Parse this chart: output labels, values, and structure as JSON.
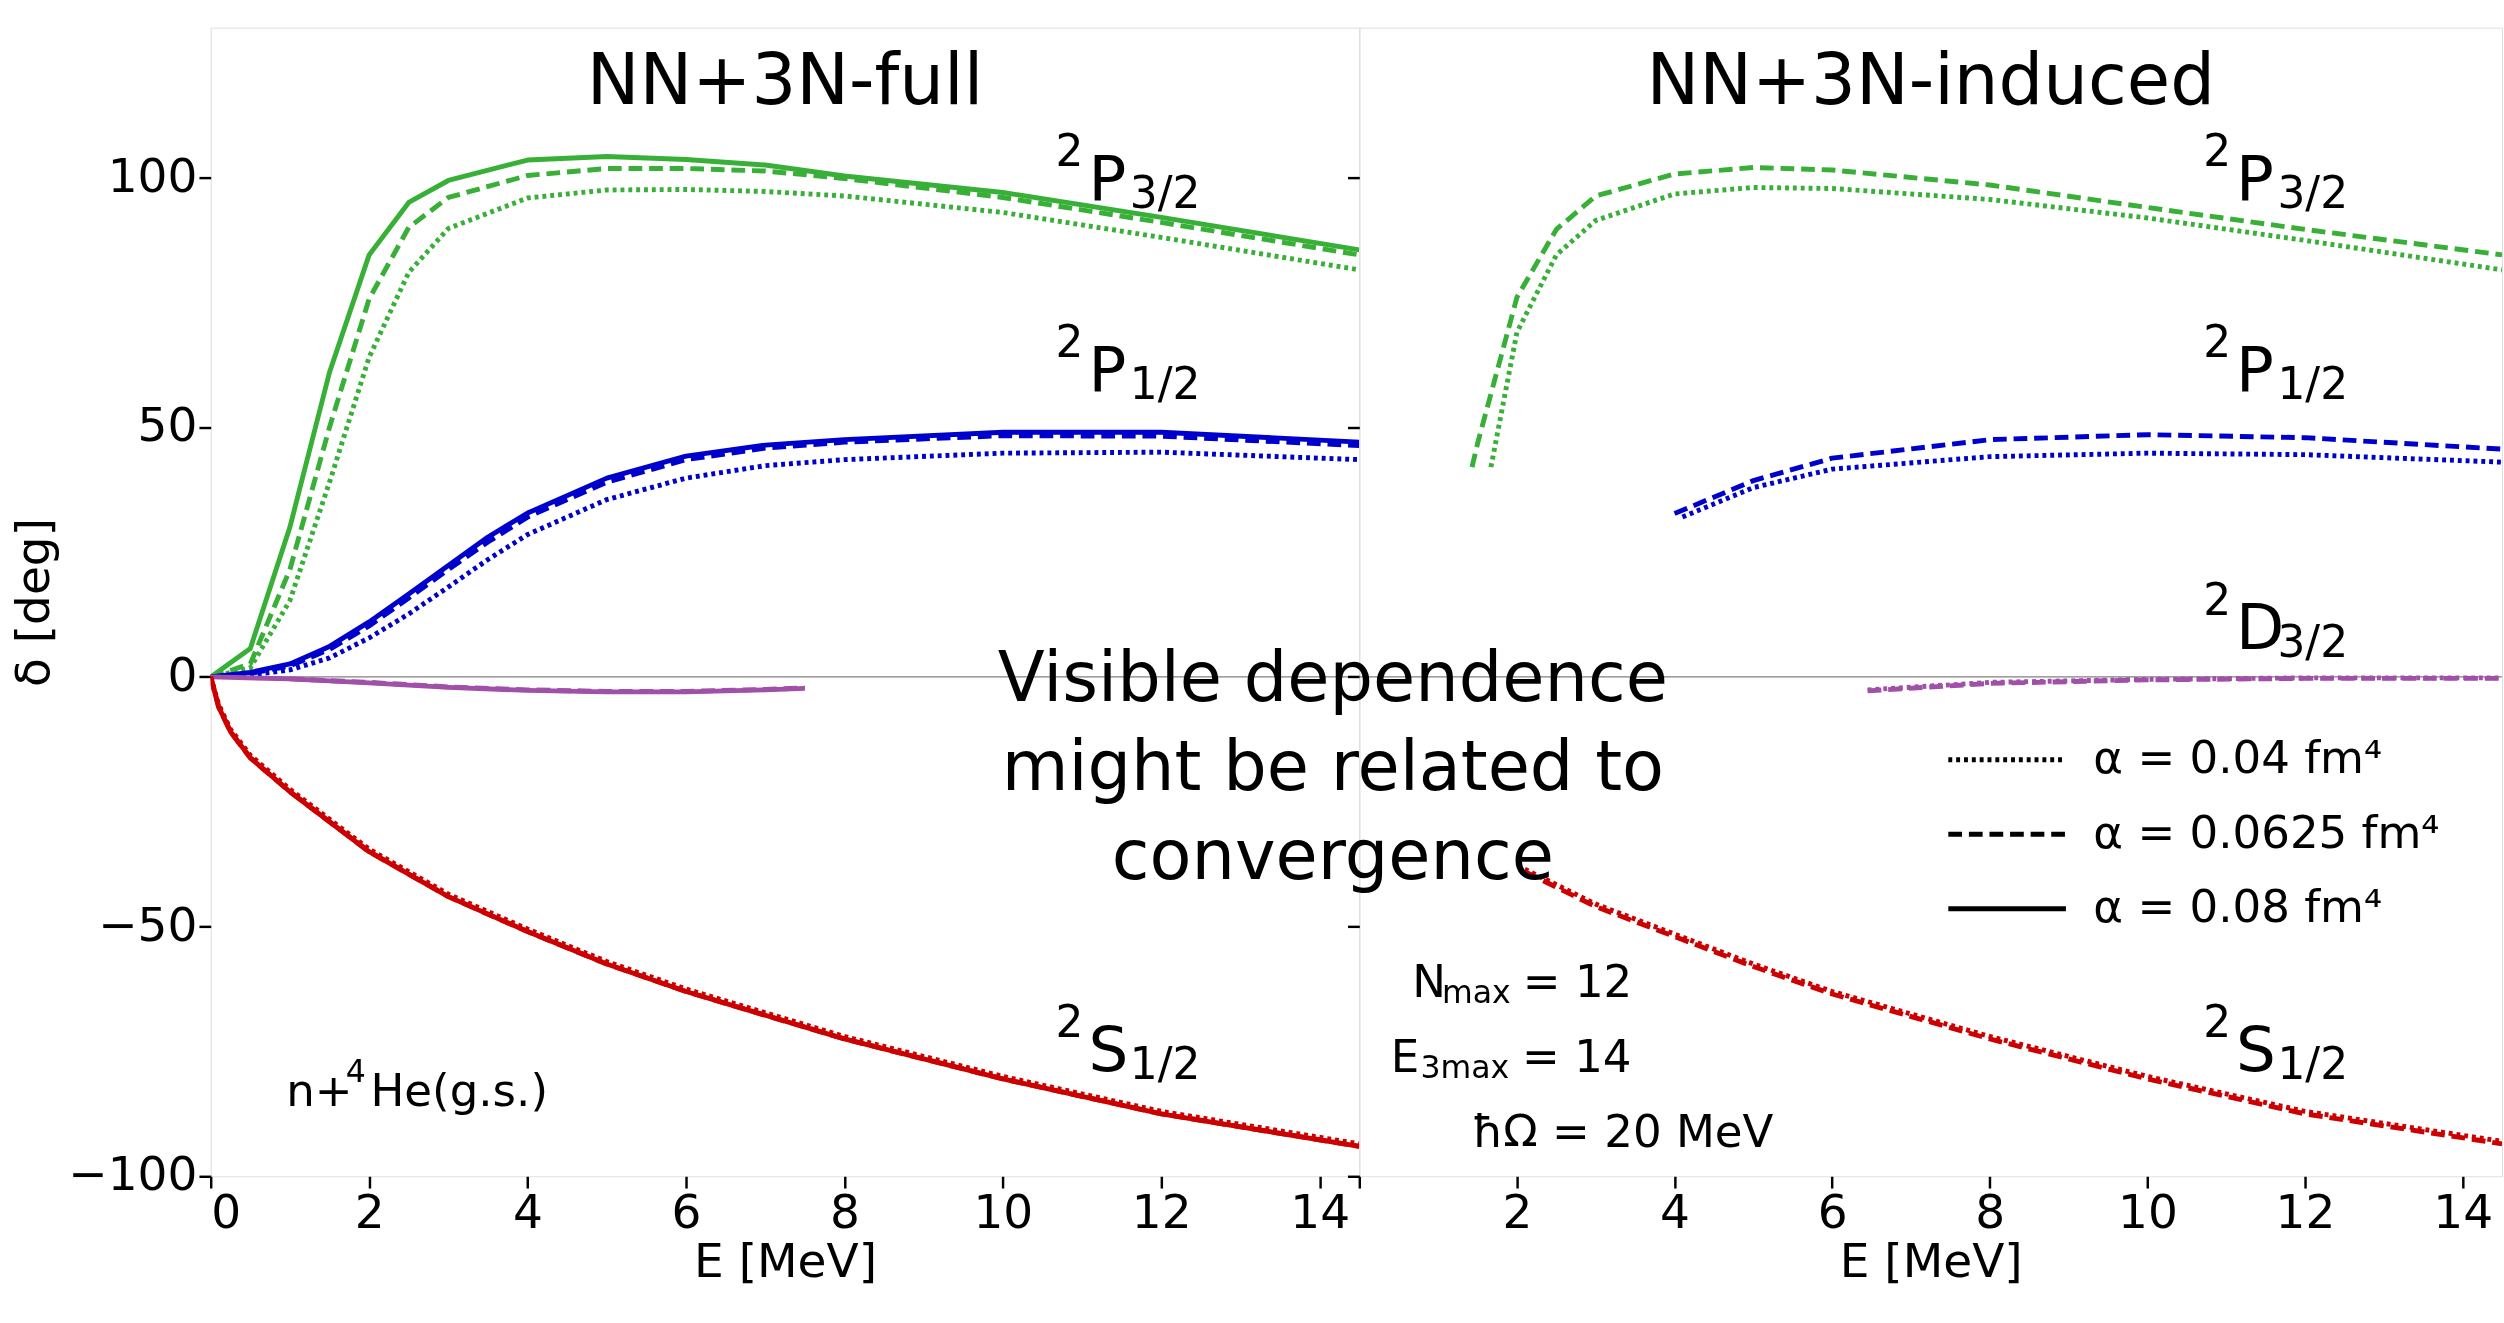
{
  "chart_data": [
    {
      "type": "line",
      "title": "NN+3N-full",
      "xlabel": "E [MeV]",
      "ylabel": "δ [deg]",
      "xlim": [
        0,
        14.5
      ],
      "ylim": [
        -100,
        130
      ],
      "xticks": [
        0,
        2,
        4,
        6,
        8,
        10,
        12,
        14
      ],
      "yticks": [
        -100,
        -50,
        0,
        50,
        100
      ],
      "ref_lines": [
        {
          "axis": "y",
          "value": 0,
          "color": "#808080"
        }
      ],
      "series": [
        {
          "color": "#38b038",
          "line_style": "solid",
          "x": [
            0,
            0.5,
            1,
            1.5,
            2,
            2.5,
            3,
            4,
            5,
            6,
            7,
            8,
            10,
            12,
            14.5
          ],
          "values": [
            0,
            5.7,
            30,
            61,
            84.5,
            95,
            99.4,
            103.5,
            104.2,
            103.6,
            102.5,
            100.3,
            97,
            92,
            85.5
          ]
        },
        {
          "color": "#38b038",
          "line_style": "dashed",
          "x": [
            0,
            0.5,
            1,
            1.5,
            2,
            2.5,
            3,
            4,
            5,
            6,
            7,
            8,
            10,
            12,
            14.5
          ],
          "values": [
            0,
            2.6,
            21.5,
            50,
            75.7,
            90,
            96,
            100.4,
            101.8,
            101.8,
            101.3,
            99.8,
            96,
            91,
            84.5
          ]
        },
        {
          "color": "#38b038",
          "line_style": "dotted",
          "x": [
            0,
            0.5,
            1,
            1.5,
            2,
            2.5,
            3,
            4,
            5,
            6,
            7,
            8,
            10,
            12,
            14.5
          ],
          "values": [
            0,
            1.8,
            15.3,
            39,
            64,
            81,
            89.8,
            95.9,
            97.5,
            97.6,
            97.2,
            96.3,
            93,
            88,
            81.5
          ]
        },
        {
          "color": "#0000cc",
          "line_style": "solid",
          "x": [
            0,
            0.5,
            1,
            1.5,
            2,
            2.5,
            3,
            3.5,
            4,
            5,
            6,
            7,
            8,
            10,
            12,
            14.5
          ],
          "values": [
            0,
            0.9,
            2.6,
            6.1,
            11,
            16.6,
            22.3,
            28,
            32.8,
            39.8,
            44.2,
            46.4,
            47.5,
            49,
            49,
            47
          ]
        },
        {
          "color": "#0000cc",
          "line_style": "dashed",
          "x": [
            0,
            0.5,
            1,
            1.5,
            2,
            2.5,
            3,
            3.5,
            4,
            5,
            6,
            7,
            8,
            10,
            12,
            14.5
          ],
          "values": [
            0,
            0.7,
            2.2,
            5.5,
            10.2,
            15.8,
            21.5,
            27,
            32,
            39,
            43.5,
            45.8,
            47,
            48.3,
            48.2,
            46.3
          ]
        },
        {
          "color": "#0000cc",
          "line_style": "dotted",
          "x": [
            0,
            0.5,
            1,
            1.5,
            2,
            2.5,
            3,
            3.5,
            4,
            5,
            6,
            7,
            8,
            10,
            12,
            14.5
          ],
          "values": [
            0,
            0.4,
            1.4,
            3.8,
            7.8,
            12.6,
            18,
            23.5,
            28.5,
            35.5,
            39.8,
            42.3,
            43.5,
            44.8,
            45,
            43.5
          ]
        },
        {
          "color": "#a050a8",
          "line_style": "solid",
          "x": [
            0,
            1,
            2,
            3,
            4,
            5,
            6,
            7,
            7.5
          ],
          "values": [
            0,
            -0.4,
            -1.2,
            -2.1,
            -2.7,
            -3,
            -3,
            -2.6,
            -2.3
          ]
        },
        {
          "color": "#a050a8",
          "line_style": "dashed",
          "x": [
            1,
            2,
            3,
            4,
            5,
            6,
            7,
            7.5
          ],
          "values": [
            -0.4,
            -1.1,
            -2,
            -2.6,
            -2.9,
            -2.9,
            -2.5,
            -2.2
          ]
        },
        {
          "color": "#cc0000",
          "line_style": "solid",
          "x": [
            0,
            0.1,
            0.25,
            0.5,
            1,
            2,
            3,
            4,
            5,
            6,
            8,
            10,
            12,
            14.5
          ],
          "values": [
            0,
            -6,
            -11,
            -16.2,
            -23,
            -35,
            -44,
            -51,
            -57.5,
            -63,
            -72.5,
            -80.5,
            -87.5,
            -94
          ]
        },
        {
          "color": "#cc0000",
          "line_style": "dashed",
          "x": [
            0,
            0.1,
            0.25,
            0.5,
            1,
            2,
            3,
            4,
            5,
            6,
            8,
            10,
            12,
            14.5
          ],
          "values": [
            0,
            -6,
            -11,
            -16.2,
            -23,
            -35,
            -44,
            -51,
            -57.5,
            -63,
            -72.5,
            -80.5,
            -87.5,
            -94
          ]
        },
        {
          "color": "#cc0000",
          "line_style": "dotted",
          "x": [
            0,
            0.1,
            0.25,
            0.5,
            1,
            2,
            3,
            4,
            5,
            6,
            8,
            10,
            12,
            14.5
          ],
          "values": [
            0,
            -5.5,
            -10.5,
            -15.7,
            -22.5,
            -34.5,
            -43.5,
            -50.5,
            -57,
            -62.5,
            -72,
            -80,
            -87,
            -93.5
          ]
        }
      ],
      "annotations": [
        "$^{2}$P$_{3/2}$",
        "$^{2}$P$_{1/2}$",
        "$^{2}$S$_{1/2}$",
        "n+$^{4}$He(g.s.)"
      ]
    },
    {
      "type": "line",
      "title": "NN+3N-induced",
      "xlabel": "E [MeV]",
      "xlim": [
        0,
        14.5
      ],
      "ylim": [
        -100,
        130
      ],
      "xticks": [
        {
          "value": 0,
          "label": null
        },
        2,
        4,
        6,
        8,
        10,
        12,
        14
      ],
      "yticks": [
        -100,
        -50,
        0,
        50,
        100
      ],
      "tick_labels": "x",
      "ref_lines": [
        {
          "axis": "y",
          "value": 0,
          "color": "#808080"
        }
      ],
      "series": [
        {
          "color": "#38b038",
          "line_style": "dotted",
          "x": [
            1.67,
            2,
            2.5,
            3,
            4,
            5,
            6,
            8,
            10,
            12,
            14.5
          ],
          "values": [
            42,
            69,
            84.5,
            91.4,
            96.7,
            98,
            97.8,
            95.6,
            91.9,
            87.4,
            81.5
          ]
        },
        {
          "color": "#38b038",
          "line_style": "dashed",
          "x": [
            1.43,
            1.5,
            2,
            2.5,
            3,
            4,
            5,
            6,
            8,
            10,
            12,
            14.5
          ],
          "values": [
            42,
            46.7,
            76,
            89.6,
            96.3,
            100.7,
            102,
            101.5,
            98.5,
            94,
            89.6,
            84.5
          ]
        },
        {
          "color": "#0000cc",
          "line_style": "dotted",
          "x": [
            4.1,
            5,
            6,
            8,
            10,
            12,
            14.5
          ],
          "values": [
            32,
            37.9,
            41.6,
            44.1,
            44.8,
            44.5,
            43
          ]
        },
        {
          "color": "#0000cc",
          "line_style": "dashed",
          "x": [
            4,
            5,
            6,
            8,
            10,
            12,
            14.5
          ],
          "values": [
            32.7,
            39.3,
            43.8,
            47.5,
            48.5,
            47.9,
            45.6
          ]
        },
        {
          "color": "#a050a8",
          "line_style": "dotted",
          "x": [
            6.45,
            8,
            10,
            12,
            14.5
          ],
          "values": [
            -2.6,
            -1.1,
            -0.5,
            -0.2,
            -0.2
          ]
        },
        {
          "color": "#a050a8",
          "line_style": "dashed",
          "x": [
            6.45,
            8,
            10,
            12,
            14.5
          ],
          "values": [
            -2.8,
            -1.3,
            -0.6,
            -0.3,
            -0.3
          ]
        },
        {
          "color": "#cc0000",
          "line_style": "dotted",
          "x": [
            2.1,
            3,
            4,
            5,
            6,
            8,
            10,
            12,
            14.5
          ],
          "values": [
            -38.5,
            -45.5,
            -51.5,
            -57.5,
            -63,
            -72,
            -80,
            -87,
            -93
          ]
        },
        {
          "color": "#cc0000",
          "line_style": "dashed",
          "x": [
            2.1,
            3,
            4,
            5,
            6,
            8,
            10,
            12,
            14.5
          ],
          "values": [
            -39,
            -46,
            -52,
            -58,
            -63.5,
            -72.5,
            -80.5,
            -87.5,
            -93.5
          ]
        }
      ],
      "annotations": [
        "$^{2}$P$_{3/2}$",
        "$^{2}$P$_{1/2}$",
        "$^{2}$D$_{3/2}$",
        "$^{2}$S$_{1/2}$",
        "N$_{max}$ = 12",
        "E$_{3max}$ = 14",
        "ħΩ = 20 MeV",
        "Visible dependence\nmight be related to\nconvergence",
        "α = 0.04 fm⁴",
        "α = 0.0625 fm⁴",
        "α = 0.08 fm⁴"
      ]
    }
  ]
}
